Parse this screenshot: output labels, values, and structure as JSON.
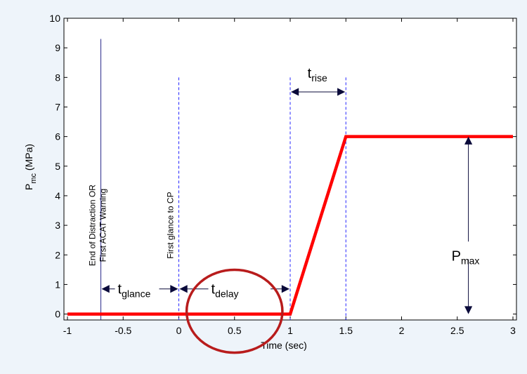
{
  "chart_data": {
    "type": "line",
    "title": "",
    "xlabel": "Time (sec)",
    "ylabel": {
      "main": "P",
      "sub": "mc",
      "unit": " (MPa)"
    },
    "xlim": [
      -1,
      3
    ],
    "ylim": [
      -0.2,
      10
    ],
    "xticks": [
      -1,
      -0.5,
      0,
      0.5,
      1,
      1.5,
      2,
      2.5,
      3
    ],
    "xtick_labels": [
      "-1",
      "-0.5",
      "0",
      "0.5",
      "1",
      "1.5",
      "2",
      "2.5",
      "3"
    ],
    "yticks": [
      0,
      1,
      2,
      3,
      4,
      5,
      6,
      7,
      8,
      9,
      10
    ],
    "ytick_labels": [
      "0",
      "1",
      "2",
      "3",
      "4",
      "5",
      "6",
      "7",
      "8",
      "9",
      "10"
    ],
    "grid": false,
    "series": [
      {
        "color": "#ff0000",
        "x": [
          -1,
          1,
          1.5,
          3
        ],
        "y": [
          0,
          0,
          6,
          6
        ]
      }
    ],
    "vlines": [
      {
        "x": -0.7,
        "y_top": 9.3,
        "style": "solid",
        "color": "#2b2b8a",
        "label": [
          "End of Distraction OR",
          "First ACAT Warning"
        ]
      },
      {
        "x": 0,
        "y_top": 8.0,
        "style": "dashed",
        "color": "#2424ff",
        "label": [
          "First glance to CP"
        ]
      },
      {
        "x": 1,
        "y_top": 8.0,
        "style": "dashed",
        "color": "#2424ff",
        "label": []
      },
      {
        "x": 1.5,
        "y_top": 8.0,
        "style": "dashed",
        "color": "#2424ff",
        "label": []
      }
    ],
    "annotations": [
      {
        "name": "t-glance",
        "main": "t",
        "sub": "glance",
        "x_from": -0.7,
        "x_to": 0,
        "y": 0.85
      },
      {
        "name": "t-delay",
        "main": "t",
        "sub": "delay",
        "x_from": 0,
        "x_to": 1,
        "y": 0.85
      },
      {
        "name": "t-rise",
        "main": "t",
        "sub": "rise",
        "x_from": 1,
        "x_to": 1.5,
        "y": 7.7
      }
    ],
    "vertical_annotation": {
      "main": "P",
      "sub": "max",
      "x": 2.6,
      "y_from": 0,
      "y_to": 6
    },
    "highlight_circle": {
      "cx": 0.5,
      "cy": 0,
      "rx": 0.43,
      "ry": 1.4,
      "color": "#b81c1c"
    }
  }
}
